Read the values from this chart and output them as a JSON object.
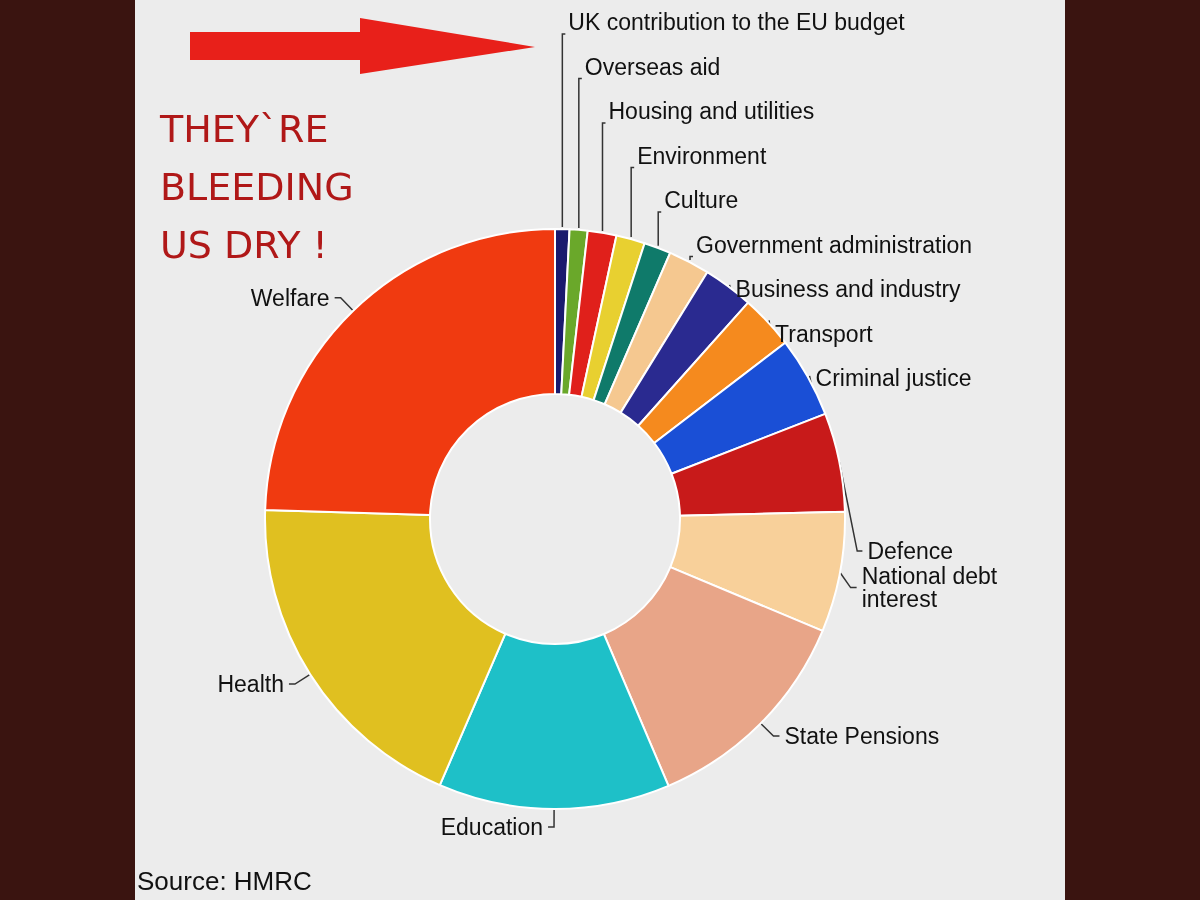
{
  "chart_data": {
    "type": "donut",
    "title": "THEY`RE BLEEDING US DRY !",
    "categories": [
      "UK contribution to the EU budget",
      "Overseas aid",
      "Housing and utilities",
      "Environment",
      "Culture",
      "Government administration",
      "Business and industry",
      "Transport",
      "Criminal justice",
      "Defence",
      "National debt interest",
      "State Pensions",
      "Education",
      "Health",
      "Welfare"
    ],
    "values": [
      0.8,
      1,
      1.6,
      1.6,
      1.5,
      2.3,
      2.8,
      3,
      4.5,
      5.5,
      6.7,
      12.3,
      12.9,
      19,
      24.5
    ],
    "colors": [
      "#1a1a6e",
      "#6aa82a",
      "#e0201b",
      "#e8d030",
      "#0f7a6a",
      "#f5c890",
      "#2a2a90",
      "#f58a1e",
      "#1a4fd6",
      "#c81a1a",
      "#f8d09a",
      "#e8a588",
      "#1ec0c8",
      "#e0c020",
      "#f03a10"
    ],
    "annotations": [
      "Source: HMRC"
    ],
    "legend": false
  }
}
